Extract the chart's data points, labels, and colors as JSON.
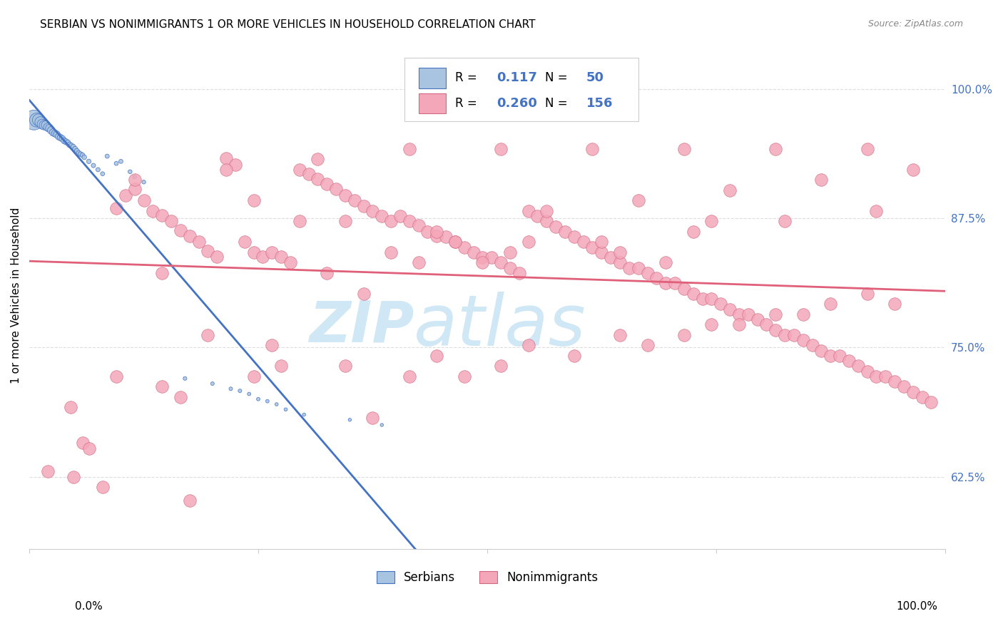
{
  "title": "SERBIAN VS NONIMMIGRANTS 1 OR MORE VEHICLES IN HOUSEHOLD CORRELATION CHART",
  "source": "Source: ZipAtlas.com",
  "ylabel": "1 or more Vehicles in Household",
  "legend_label1": "Serbians",
  "legend_label2": "Nonimmigrants",
  "R1": "0.117",
  "N1": "50",
  "R2": "0.260",
  "N2": "156",
  "serbian_color": "#a8c4e0",
  "nonimmigrant_color": "#f4a7b9",
  "trend1_color": "#4472c4",
  "trend2_color": "#e0607a",
  "watermark_color": "#d0e8f5",
  "background_color": "#ffffff",
  "grid_color": "#dddddd",
  "right_axis_color": "#4472c4",
  "ytick_labels": [
    "62.5%",
    "75.0%",
    "87.5%",
    "100.0%"
  ],
  "ytick_values": [
    0.625,
    0.75,
    0.875,
    1.0
  ],
  "xmin": 0.0,
  "xmax": 1.0,
  "ymin": 0.555,
  "ymax": 1.045,
  "serbian_x": [
    0.005,
    0.008,
    0.01,
    0.012,
    0.014,
    0.016,
    0.018,
    0.02,
    0.022,
    0.024,
    0.026,
    0.028,
    0.03,
    0.032,
    0.034,
    0.036,
    0.038,
    0.04,
    0.042,
    0.044,
    0.046,
    0.048,
    0.05,
    0.052,
    0.054,
    0.056,
    0.058,
    0.06,
    0.065,
    0.07,
    0.075,
    0.08,
    0.085,
    0.095,
    0.1,
    0.11,
    0.115,
    0.125,
    0.17,
    0.2,
    0.22,
    0.23,
    0.24,
    0.25,
    0.26,
    0.27,
    0.28,
    0.3,
    0.35,
    0.385
  ],
  "serbian_y": [
    0.97,
    0.97,
    0.97,
    0.968,
    0.966,
    0.965,
    0.965,
    0.963,
    0.962,
    0.96,
    0.958,
    0.957,
    0.956,
    0.954,
    0.953,
    0.952,
    0.95,
    0.949,
    0.948,
    0.946,
    0.945,
    0.944,
    0.942,
    0.94,
    0.938,
    0.937,
    0.936,
    0.934,
    0.93,
    0.926,
    0.922,
    0.918,
    0.935,
    0.928,
    0.93,
    0.92,
    0.915,
    0.91,
    0.72,
    0.715,
    0.71,
    0.708,
    0.705,
    0.7,
    0.698,
    0.695,
    0.69,
    0.685,
    0.68,
    0.675
  ],
  "serbian_sizes": [
    400,
    200,
    150,
    120,
    100,
    90,
    80,
    70,
    65,
    60,
    55,
    50,
    48,
    45,
    43,
    40,
    38,
    36,
    34,
    32,
    30,
    28,
    27,
    26,
    25,
    24,
    23,
    22,
    20,
    19,
    18,
    17,
    18,
    17,
    17,
    16,
    15,
    15,
    14,
    13,
    13,
    13,
    12,
    12,
    12,
    11,
    11,
    11,
    10,
    10
  ],
  "nonimmigrant_x": [
    0.02,
    0.048,
    0.058,
    0.08,
    0.095,
    0.105,
    0.115,
    0.125,
    0.135,
    0.145,
    0.155,
    0.165,
    0.175,
    0.185,
    0.195,
    0.205,
    0.215,
    0.225,
    0.235,
    0.245,
    0.255,
    0.265,
    0.275,
    0.285,
    0.295,
    0.305,
    0.315,
    0.325,
    0.335,
    0.345,
    0.355,
    0.365,
    0.375,
    0.385,
    0.395,
    0.405,
    0.415,
    0.425,
    0.435,
    0.445,
    0.455,
    0.465,
    0.475,
    0.485,
    0.495,
    0.505,
    0.515,
    0.525,
    0.535,
    0.545,
    0.555,
    0.565,
    0.575,
    0.585,
    0.595,
    0.605,
    0.615,
    0.625,
    0.635,
    0.645,
    0.655,
    0.665,
    0.675,
    0.685,
    0.695,
    0.705,
    0.715,
    0.725,
    0.735,
    0.745,
    0.755,
    0.765,
    0.775,
    0.785,
    0.795,
    0.805,
    0.815,
    0.825,
    0.835,
    0.845,
    0.855,
    0.865,
    0.875,
    0.885,
    0.895,
    0.905,
    0.915,
    0.925,
    0.935,
    0.945,
    0.955,
    0.965,
    0.975,
    0.985,
    0.145,
    0.295,
    0.395,
    0.495,
    0.245,
    0.345,
    0.445,
    0.545,
    0.645,
    0.695,
    0.745,
    0.045,
    0.095,
    0.195,
    0.275,
    0.375,
    0.415,
    0.475,
    0.515,
    0.595,
    0.675,
    0.715,
    0.775,
    0.815,
    0.875,
    0.915,
    0.325,
    0.425,
    0.525,
    0.625,
    0.725,
    0.825,
    0.925,
    0.065,
    0.165,
    0.265,
    0.365,
    0.465,
    0.565,
    0.665,
    0.765,
    0.865,
    0.965,
    0.145,
    0.245,
    0.345,
    0.445,
    0.545,
    0.645,
    0.745,
    0.845,
    0.945,
    0.115,
    0.215,
    0.315,
    0.415,
    0.515,
    0.615,
    0.715,
    0.815,
    0.915,
    0.175
  ],
  "nonimmigrant_y": [
    0.63,
    0.625,
    0.658,
    0.615,
    0.885,
    0.897,
    0.903,
    0.892,
    0.882,
    0.878,
    0.872,
    0.863,
    0.858,
    0.852,
    0.843,
    0.838,
    0.933,
    0.927,
    0.852,
    0.842,
    0.838,
    0.842,
    0.838,
    0.832,
    0.922,
    0.918,
    0.913,
    0.908,
    0.903,
    0.897,
    0.892,
    0.887,
    0.882,
    0.877,
    0.872,
    0.877,
    0.872,
    0.868,
    0.862,
    0.858,
    0.857,
    0.852,
    0.847,
    0.842,
    0.837,
    0.837,
    0.832,
    0.827,
    0.822,
    0.882,
    0.877,
    0.872,
    0.867,
    0.862,
    0.857,
    0.852,
    0.847,
    0.842,
    0.837,
    0.832,
    0.827,
    0.827,
    0.822,
    0.817,
    0.812,
    0.812,
    0.807,
    0.802,
    0.797,
    0.797,
    0.792,
    0.787,
    0.782,
    0.782,
    0.777,
    0.772,
    0.767,
    0.762,
    0.762,
    0.757,
    0.752,
    0.747,
    0.742,
    0.742,
    0.737,
    0.732,
    0.727,
    0.722,
    0.722,
    0.717,
    0.712,
    0.707,
    0.702,
    0.697,
    0.822,
    0.872,
    0.842,
    0.832,
    0.892,
    0.872,
    0.862,
    0.852,
    0.842,
    0.832,
    0.872,
    0.692,
    0.722,
    0.762,
    0.732,
    0.682,
    0.722,
    0.722,
    0.732,
    0.742,
    0.752,
    0.762,
    0.772,
    0.782,
    0.792,
    0.802,
    0.822,
    0.832,
    0.842,
    0.852,
    0.862,
    0.872,
    0.882,
    0.652,
    0.702,
    0.752,
    0.802,
    0.852,
    0.882,
    0.892,
    0.902,
    0.912,
    0.922,
    0.712,
    0.722,
    0.732,
    0.742,
    0.752,
    0.762,
    0.772,
    0.782,
    0.792,
    0.912,
    0.922,
    0.932,
    0.942,
    0.942,
    0.942,
    0.942,
    0.942,
    0.942,
    0.602
  ]
}
